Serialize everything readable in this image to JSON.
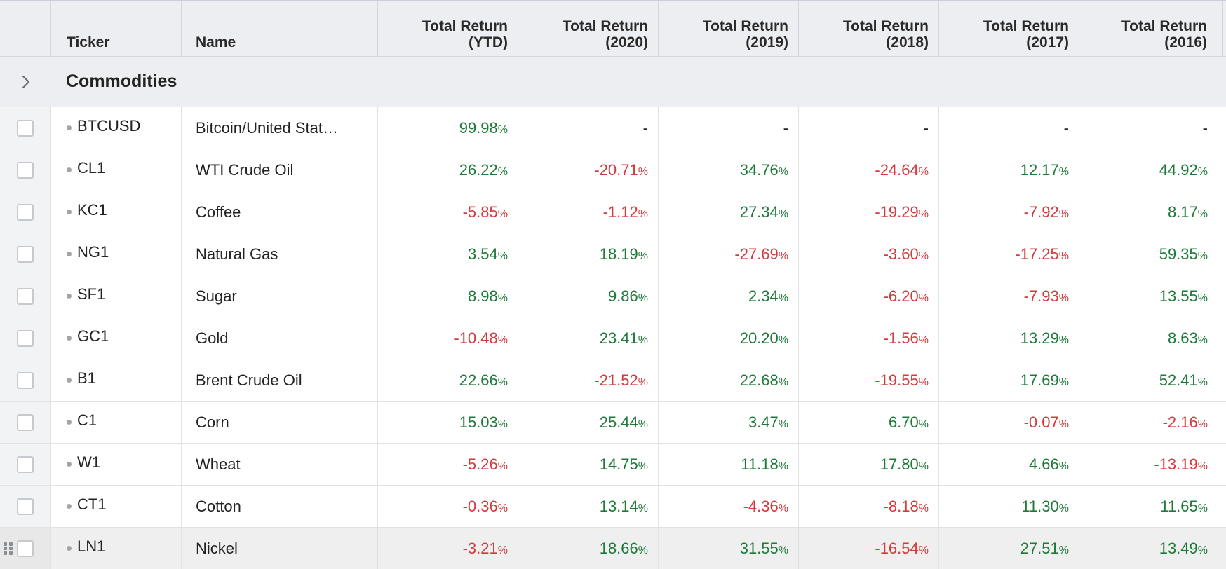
{
  "colors": {
    "positive": "#1f7a3a",
    "negative": "#d13b3b",
    "header_bg": "#edeef1"
  },
  "header": {
    "ticker": "Ticker",
    "name": "Name",
    "columns": [
      "Total Return\n(YTD)",
      "Total Return\n(2020)",
      "Total Return\n(2019)",
      "Total Return\n(2018)",
      "Total Return\n(2017)",
      "Total Return\n(2016)"
    ]
  },
  "group": {
    "label": "Commodities",
    "expand_icon": "chevron-right-icon"
  },
  "rows": [
    {
      "ticker": "BTCUSD",
      "name": "Bitcoin/United Stat…",
      "values": [
        "99.98",
        "-",
        "-",
        "-",
        "-",
        "-"
      ]
    },
    {
      "ticker": "CL1",
      "name": "WTI Crude Oil",
      "values": [
        "26.22",
        "-20.71",
        "34.76",
        "-24.64",
        "12.17",
        "44.92"
      ]
    },
    {
      "ticker": "KC1",
      "name": "Coffee",
      "values": [
        "-5.85",
        "-1.12",
        "27.34",
        "-19.29",
        "-7.92",
        "8.17"
      ]
    },
    {
      "ticker": "NG1",
      "name": "Natural Gas",
      "values": [
        "3.54",
        "18.19",
        "-27.69",
        "-3.60",
        "-17.25",
        "59.35"
      ]
    },
    {
      "ticker": "SF1",
      "name": "Sugar",
      "values": [
        "8.98",
        "9.86",
        "2.34",
        "-6.20",
        "-7.93",
        "13.55"
      ]
    },
    {
      "ticker": "GC1",
      "name": "Gold",
      "values": [
        "-10.48",
        "23.41",
        "20.20",
        "-1.56",
        "13.29",
        "8.63"
      ]
    },
    {
      "ticker": "B1",
      "name": "Brent Crude Oil",
      "values": [
        "22.66",
        "-21.52",
        "22.68",
        "-19.55",
        "17.69",
        "52.41"
      ]
    },
    {
      "ticker": "C1",
      "name": "Corn",
      "values": [
        "15.03",
        "25.44",
        "3.47",
        "6.70",
        "-0.07",
        "-2.16"
      ]
    },
    {
      "ticker": "W1",
      "name": "Wheat",
      "values": [
        "-5.26",
        "14.75",
        "11.18",
        "17.80",
        "4.66",
        "-13.19"
      ]
    },
    {
      "ticker": "CT1",
      "name": "Cotton",
      "values": [
        "-0.36",
        "13.14",
        "-4.36",
        "-8.18",
        "11.30",
        "11.65"
      ]
    },
    {
      "ticker": "LN1",
      "name": "Nickel",
      "values": [
        "-3.21",
        "18.66",
        "31.55",
        "-16.54",
        "27.51",
        "13.49"
      ],
      "hovered": true
    }
  ],
  "percent_suffix": "%"
}
